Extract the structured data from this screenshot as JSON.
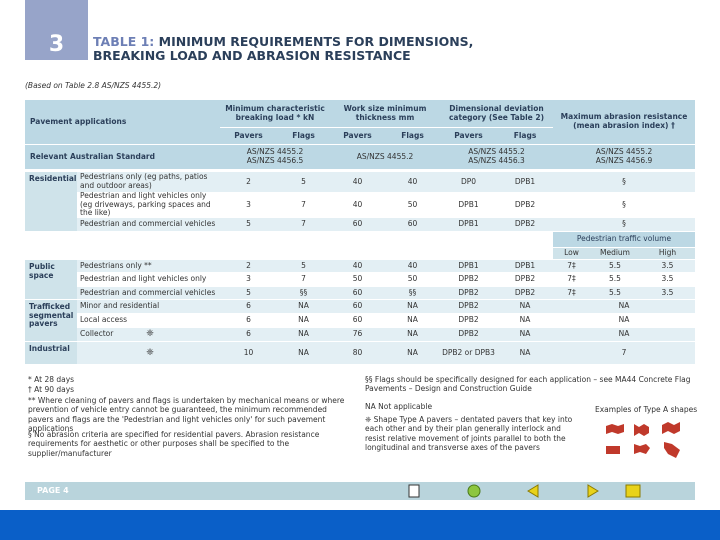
{
  "header": {
    "chapter": "3",
    "table_label": "TABLE 1:",
    "title": "MINIMUM REQUIREMENTS FOR DIMENSIONS, BREAKING LOAD AND ABRASION RESISTANCE",
    "subtitle": "(Based on Table 2.8 AS/NZS 4455.2)"
  },
  "table": {
    "columns": {
      "pavement_applications": "Pavement applications",
      "breaking_load": "Minimum characteristic breaking load * kN",
      "thickness": "Work size minimum thickness mm",
      "deviation": "Dimensional deviation category (See Table 2)",
      "abrasion": "Maximum abrasion resistance (mean abrasion index) †"
    },
    "subheaders": [
      "Pavers",
      "Flags",
      "Pavers",
      "Flags",
      "Pavers",
      "Flags"
    ],
    "standard": {
      "label": "Relevant Australian Standard",
      "cells": [
        "AS/NZS 4455.2\nAS/NZS 4456.5",
        "AS/NZS 4455.2",
        "AS/NZS 4455.2\nAS/NZS 4456.3",
        "AS/NZS 4455.2\nAS/NZS 4456.9"
      ]
    },
    "traffic_volume": {
      "title": "Pedestrian traffic volume",
      "levels": [
        "Low",
        "Medium",
        "High"
      ]
    },
    "groups": [
      {
        "name": "Residential",
        "rows": [
          {
            "application": "Pedestrians only (eg paths, patios and outdoor areas)",
            "values": [
              2,
              5,
              40,
              40,
              "DP0",
              "DPB1",
              "§"
            ]
          },
          {
            "application": "Pedestrian and light vehicles only (eg driveways, parking spaces and the like)",
            "values": [
              3,
              7,
              40,
              50,
              "DPB1",
              "DPB2",
              "§"
            ]
          },
          {
            "application": "Pedestrian and commercial vehicles",
            "values": [
              5,
              7,
              60,
              60,
              "DPB1",
              "DPB2",
              "§"
            ]
          }
        ]
      },
      {
        "name": "Public space",
        "rows": [
          {
            "application": "Pedestrians only **",
            "values": [
              2,
              5,
              40,
              40,
              "DPB1",
              "DPB1",
              "7‡",
              5.5,
              3.5
            ]
          },
          {
            "application": "Pedestrian and light vehicles only",
            "values": [
              3,
              7,
              50,
              50,
              "DPB2",
              "DPB2",
              "7‡",
              5.5,
              3.5
            ]
          },
          {
            "application": "Pedestrian and commercial vehicles",
            "values": [
              5,
              "§§",
              60,
              "§§",
              "DPB2",
              "DPB2",
              "7‡",
              5.5,
              3.5
            ]
          }
        ]
      },
      {
        "name": "Trafficked segmental pavers",
        "rows": [
          {
            "application": "Minor and residential",
            "values": [
              6,
              "NA",
              60,
              "NA",
              "DPB2",
              "NA",
              "NA"
            ]
          },
          {
            "application": "Local access",
            "values": [
              6,
              "NA",
              60,
              "NA",
              "DPB2",
              "NA",
              "NA"
            ]
          },
          {
            "application": "Collector",
            "symbol": "❈",
            "values": [
              6,
              "NA",
              76,
              "NA",
              "DPB2",
              "NA",
              "NA"
            ]
          }
        ]
      },
      {
        "name": "Industrial",
        "rows": [
          {
            "application": "",
            "symbol": "❈",
            "values": [
              10,
              "NA",
              80,
              "NA",
              "DPB2 or DPB3",
              "NA",
              7
            ]
          }
        ]
      }
    ]
  },
  "notes": {
    "left": [
      "*  At 28 days",
      "†  At 90 days",
      "** Where cleaning of pavers and flags is undertaken by mechanical means or where prevention of vehicle entry cannot be guaranteed, the minimum recommended pavers and flags are the 'Pedestrian and light vehicles only' for such pavement applications",
      "§  No abrasion criteria are specified for residential pavers. Abrasion resistance requirements for aesthetic or other purposes shall be specified to the supplier/manufacturer"
    ],
    "right": [
      "§§  Flags should be specifically designed for each application – see MA44 Concrete Flag Pavements – Design and Construction Guide",
      "NA  Not applicable",
      "❈  Shape Type A pavers – dentated pavers that key into each other and by their plan generally interlock and resist relative movement of joints parallel to both the longitudinal and transverse axes of the pavers"
    ],
    "shapes_caption": "Examples of Type A shapes"
  },
  "footer": {
    "page": "PAGE 4"
  }
}
